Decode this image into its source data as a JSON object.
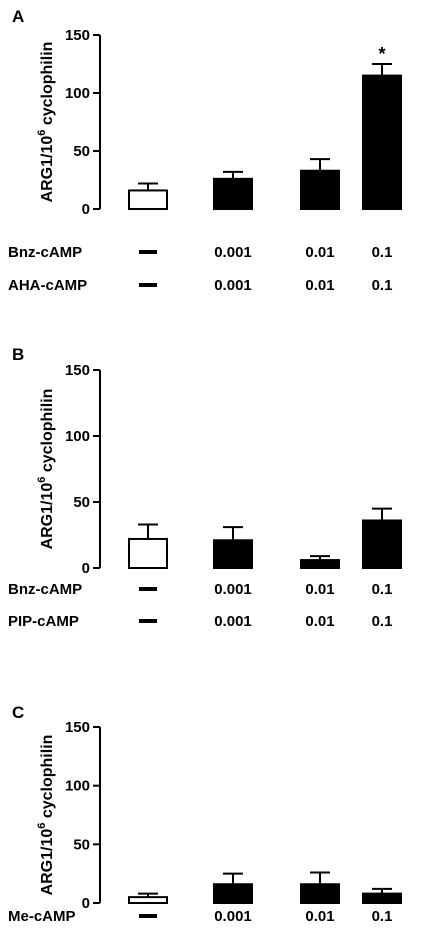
{
  "chart_data": [
    {
      "type": "bar",
      "panel_label": "A",
      "ylabel_main": "ARG1/10",
      "ylabel_sup": "6",
      "ylabel_tail": " cyclophilin",
      "ylim": [
        0,
        150
      ],
      "yticks": [
        "0",
        "50",
        "100",
        "150"
      ],
      "values": [
        16,
        26,
        33,
        115
      ],
      "errors": [
        6,
        6,
        10,
        10
      ],
      "fills": [
        "white",
        "black",
        "black",
        "black"
      ],
      "significance": [
        "",
        "",
        "",
        "*"
      ],
      "rows": [
        {
          "label": "Bnz-cAMP",
          "values": [
            "—",
            "0.001",
            "0.01",
            "0.1"
          ]
        },
        {
          "label": "AHA-cAMP",
          "values": [
            "—",
            "0.001",
            "0.01",
            "0.1"
          ]
        }
      ]
    },
    {
      "type": "bar",
      "panel_label": "B",
      "ylabel_main": "ARG1/10",
      "ylabel_sup": "6",
      "ylabel_tail": " cyclophilin",
      "ylim": [
        0,
        150
      ],
      "yticks": [
        "0",
        "50",
        "100",
        "150"
      ],
      "values": [
        22,
        21,
        6,
        36
      ],
      "errors": [
        11,
        10,
        3,
        9
      ],
      "fills": [
        "white",
        "black",
        "black",
        "black"
      ],
      "significance": [
        "",
        "",
        "",
        ""
      ],
      "rows": [
        {
          "label": "Bnz-cAMP",
          "values": [
            "—",
            "0.001",
            "0.01",
            "0.1"
          ]
        },
        {
          "label": "PIP-cAMP",
          "values": [
            "—",
            "0.001",
            "0.01",
            "0.1"
          ]
        }
      ]
    },
    {
      "type": "bar",
      "panel_label": "C",
      "ylabel_main": "ARG1/10",
      "ylabel_sup": "6",
      "ylabel_tail": " cyclophilin",
      "ylim": [
        0,
        150
      ],
      "yticks": [
        "0",
        "50",
        "100",
        "150"
      ],
      "values": [
        5,
        16,
        16,
        8
      ],
      "errors": [
        3,
        9,
        10,
        4
      ],
      "fills": [
        "white",
        "black",
        "black",
        "black"
      ],
      "significance": [
        "",
        "",
        "",
        ""
      ],
      "rows": [
        {
          "label": "Me-cAMP",
          "values": [
            "—",
            "0.001",
            "0.01",
            "0.1"
          ]
        }
      ]
    }
  ]
}
